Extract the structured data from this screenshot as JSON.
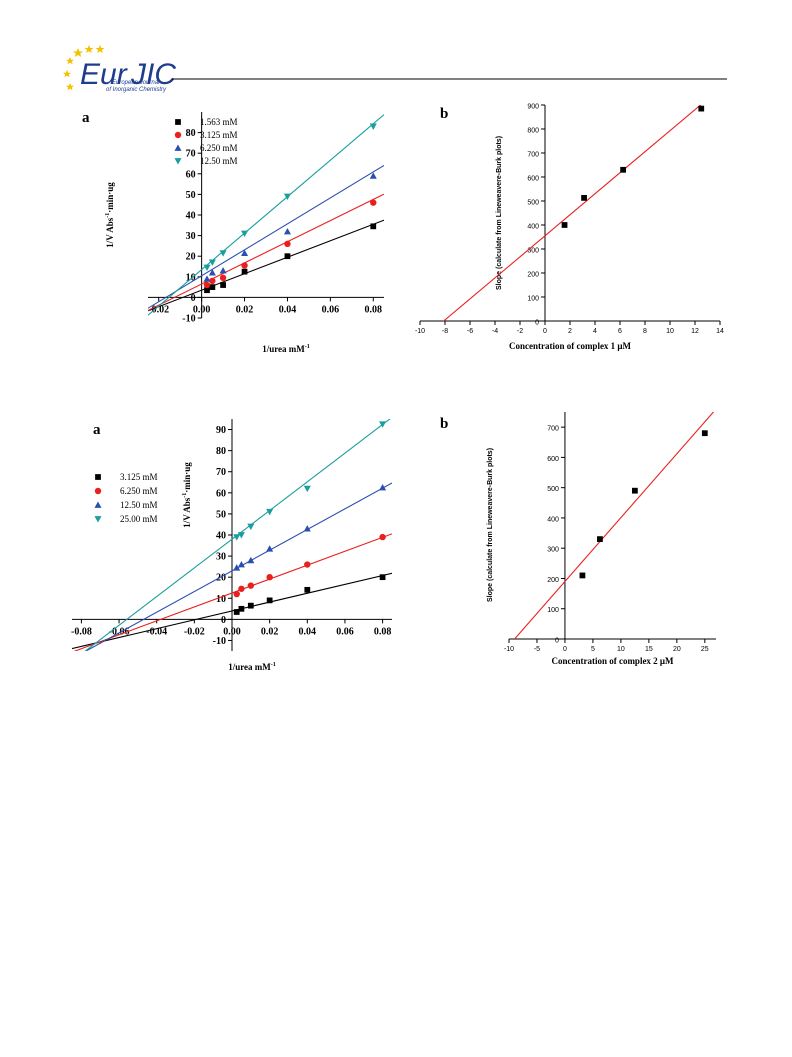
{
  "header": {
    "logo_main_a": "Eur",
    "logo_main_b": "JIC",
    "logo_sub1": "European Journal",
    "logo_sub2": "of Inorganic Chemistry"
  },
  "colors": {
    "black": "#000000",
    "red": "#e8211f",
    "blue": "#2a4fb0",
    "teal": "#1a9e9e",
    "fit_red_b": "#e8211f",
    "logo_blue": "#1f3c8f",
    "logo_star": "#f2c200"
  },
  "chart_data": [
    {
      "id": "fig1a",
      "panel": "a",
      "type": "line",
      "xlabel_pre": "1/urea  mM",
      "xlabel_sup": "-1",
      "ylabel_pre": "1/V  Abs",
      "ylabel_sup": "-1",
      "ylabel_post": "·min·ug",
      "xlim": [
        -0.025,
        0.085
      ],
      "ylim": [
        -10,
        90
      ],
      "xticks": [
        -0.02,
        0.0,
        0.02,
        0.04,
        0.06,
        0.08
      ],
      "xticklabels": [
        "-0.02",
        "0.00",
        "0.02",
        "0.04",
        "0.06",
        "0.08"
      ],
      "yticks": [
        -10,
        0,
        10,
        20,
        30,
        40,
        50,
        60,
        70,
        80
      ],
      "yticklabels": [
        "-10",
        "0",
        "10",
        "20",
        "30",
        "40",
        "50",
        "60",
        "70",
        "80"
      ],
      "legend_position": "top-left",
      "series": [
        {
          "name": "1.563 mM",
          "marker": "square",
          "color": "black",
          "x": [
            0.0025,
            0.005,
            0.01,
            0.02,
            0.04,
            0.08
          ],
          "y": [
            3.5,
            5,
            6,
            12.5,
            20,
            34.5
          ],
          "fit": {
            "slope": 400,
            "intercept": 3.5
          }
        },
        {
          "name": "3.125 mM",
          "marker": "circle",
          "color": "red",
          "x": [
            0.0025,
            0.005,
            0.01,
            0.02,
            0.04,
            0.08
          ],
          "y": [
            6,
            8,
            9.5,
            15.5,
            26,
            46
          ],
          "fit": {
            "slope": 513,
            "intercept": 6.5
          }
        },
        {
          "name": "6.250 mM",
          "marker": "triangle-up",
          "color": "blue",
          "x": [
            0.0025,
            0.005,
            0.01,
            0.02,
            0.04,
            0.08
          ],
          "y": [
            9,
            12,
            13,
            21.5,
            32,
            59
          ],
          "fit": {
            "slope": 630,
            "intercept": 10.5
          }
        },
        {
          "name": "12.50 mM",
          "marker": "triangle-down",
          "color": "teal",
          "x": [
            0.0025,
            0.005,
            0.01,
            0.02,
            0.04,
            0.08
          ],
          "y": [
            14.5,
            17,
            21.5,
            31,
            49,
            83
          ],
          "fit": {
            "slope": 885,
            "intercept": 13.5
          }
        }
      ]
    },
    {
      "id": "fig1b",
      "panel": "b",
      "type": "scatter",
      "xlabel": "Concentration of complex 1 μM",
      "ylabel": "Slope (calculate from Lineweavere-Burk plots)",
      "xlim": [
        -10,
        14
      ],
      "ylim": [
        0,
        900
      ],
      "xticks": [
        -10,
        -8,
        -6,
        -4,
        -2,
        0,
        2,
        4,
        6,
        8,
        10,
        12,
        14
      ],
      "xticklabels": [
        "-10",
        "-8",
        "-6",
        "-4",
        "-2",
        "0",
        "2",
        "4",
        "6",
        "8",
        "10",
        "12",
        "14"
      ],
      "yticks": [
        0,
        100,
        200,
        300,
        400,
        500,
        600,
        700,
        800,
        900
      ],
      "yticklabels": [
        "0",
        "100",
        "200",
        "300",
        "400",
        "500",
        "600",
        "700",
        "800",
        "900"
      ],
      "series": [
        {
          "marker": "square",
          "color": "black",
          "x": [
            1.563,
            3.125,
            6.25,
            12.5
          ],
          "y": [
            400,
            513,
            630,
            885
          ],
          "fit": {
            "slope": 43.8,
            "intercept": 355
          }
        }
      ]
    },
    {
      "id": "fig2a",
      "panel": "a",
      "type": "line",
      "xlabel_pre": "1/urea  mM",
      "xlabel_sup": "-1",
      "ylabel_pre": "1/V  Abs",
      "ylabel_sup": "-1",
      "ylabel_post": "·min·ug",
      "xlim": [
        -0.085,
        0.085
      ],
      "ylim": [
        -15,
        95
      ],
      "xticks": [
        -0.08,
        -0.06,
        -0.04,
        -0.02,
        0.0,
        0.02,
        0.04,
        0.06,
        0.08
      ],
      "xticklabels": [
        "-0.08",
        "-0.06",
        "-0.04",
        "-0.02",
        "0.00",
        "0.02",
        "0.04",
        "0.06",
        "0.08"
      ],
      "yticks": [
        -10,
        0,
        10,
        20,
        30,
        40,
        50,
        60,
        70,
        80,
        90
      ],
      "yticklabels": [
        "-10",
        "0",
        "10",
        "20",
        "30",
        "40",
        "50",
        "60",
        "70",
        "80",
        "90"
      ],
      "legend_position": "left",
      "series": [
        {
          "name": "3.125 mM",
          "marker": "square",
          "color": "black",
          "x": [
            0.0025,
            0.005,
            0.01,
            0.02,
            0.04,
            0.08
          ],
          "y": [
            3.5,
            5,
            6.5,
            9,
            14,
            20
          ],
          "fit": {
            "slope": 210,
            "intercept": 4
          }
        },
        {
          "name": "6.250 mM",
          "marker": "circle",
          "color": "red",
          "x": [
            0.0025,
            0.005,
            0.01,
            0.02,
            0.04,
            0.08
          ],
          "y": [
            12,
            14.5,
            16,
            20,
            26,
            39
          ],
          "fit": {
            "slope": 330,
            "intercept": 12.5
          }
        },
        {
          "name": "12.50 mM",
          "marker": "triangle-up",
          "color": "blue",
          "x": [
            0.0025,
            0.005,
            0.01,
            0.02,
            0.04,
            0.08
          ],
          "y": [
            24.5,
            26,
            28,
            33.5,
            43,
            62.5
          ],
          "fit": {
            "slope": 490,
            "intercept": 23
          }
        },
        {
          "name": "25.00 mM",
          "marker": "triangle-down",
          "color": "teal",
          "x": [
            0.0025,
            0.005,
            0.01,
            0.02,
            0.04,
            0.08
          ],
          "y": [
            39,
            40,
            44,
            51,
            62,
            92.5
          ],
          "fit": {
            "slope": 680,
            "intercept": 38
          }
        }
      ]
    },
    {
      "id": "fig2b",
      "panel": "b",
      "type": "scatter",
      "xlabel": "Concentration of complex 2 μM",
      "ylabel": "Slope (calculate from Lineweavere-Burk plots)",
      "xlim": [
        -10,
        27
      ],
      "ylim": [
        0,
        750
      ],
      "xticks": [
        -10,
        -5,
        0,
        5,
        10,
        15,
        20,
        25
      ],
      "xticklabels": [
        "-10",
        "-5",
        "0",
        "5",
        "10",
        "15",
        "20",
        "25"
      ],
      "yticks": [
        0,
        100,
        200,
        300,
        400,
        500,
        600,
        700
      ],
      "yticklabels": [
        "0",
        "100",
        "200",
        "300",
        "400",
        "500",
        "600",
        "700"
      ],
      "series": [
        {
          "marker": "square",
          "color": "black",
          "x": [
            3.125,
            6.25,
            12.5,
            25
          ],
          "y": [
            210,
            330,
            490,
            680
          ],
          "fit": {
            "slope": 21.1,
            "intercept": 190
          }
        }
      ]
    }
  ]
}
